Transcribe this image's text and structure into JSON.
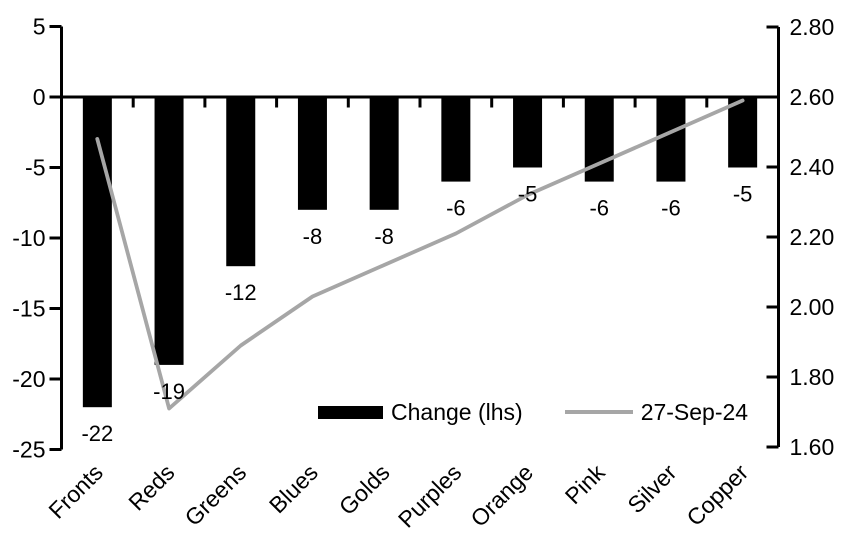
{
  "chart_data": {
    "type": "bar",
    "subtype": "combo-bar-line-dual-axis",
    "title": "",
    "categories": [
      "Fronts",
      "Reds",
      "Greens",
      "Blues",
      "Golds",
      "Purples",
      "Orange",
      "Pink",
      "Silver",
      "Copper"
    ],
    "series": [
      {
        "name": "Change (lhs)",
        "type": "bar",
        "axis": "left",
        "color": "#000000",
        "values": [
          -22,
          -19,
          -12,
          -8,
          -8,
          -6,
          -5,
          -6,
          -6,
          -5
        ],
        "data_labels": [
          "-22",
          "-19",
          "-12",
          "-8",
          "-8",
          "-6",
          "-5",
          "-6",
          "-6",
          "-5"
        ]
      },
      {
        "name": "27-Sep-24",
        "type": "line",
        "axis": "right",
        "color": "#a6a6a6",
        "values": [
          2.48,
          1.71,
          1.89,
          2.03,
          2.12,
          2.21,
          2.32,
          2.41,
          2.5,
          2.59
        ]
      }
    ],
    "left_axis": {
      "min": -25,
      "max": 5,
      "step": 5,
      "tick_labels": [
        "5",
        "0",
        "-5",
        "-10",
        "-15",
        "-20",
        "-25"
      ]
    },
    "right_axis": {
      "min": 1.6,
      "max": 2.8,
      "step": 0.2,
      "tick_labels": [
        "2.80",
        "2.60",
        "2.40",
        "2.20",
        "2.00",
        "1.80",
        "1.60"
      ]
    },
    "grid": false,
    "legend_position": "inside-bottom",
    "legend": {
      "items": [
        {
          "label": "Change (lhs)",
          "swatch": "bar"
        },
        {
          "label": "27-Sep-24",
          "swatch": "line"
        }
      ]
    }
  },
  "colors": {
    "background": "#ffffff",
    "bar": "#000000",
    "line": "#a6a6a6",
    "axis": "#000000",
    "text": "#000000"
  }
}
